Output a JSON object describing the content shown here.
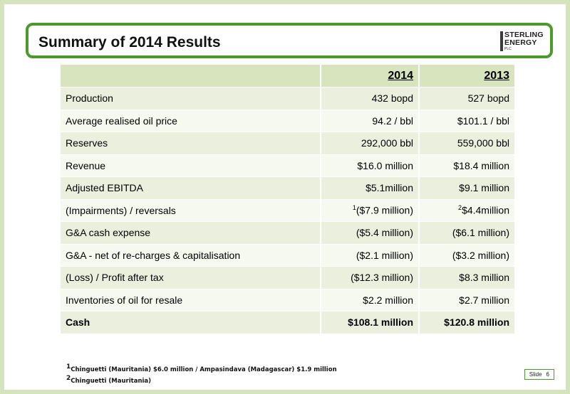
{
  "title": "Summary of 2014 Results",
  "logo": {
    "line1": "STERLING",
    "line2": "ENERGY",
    "line3": "PLC"
  },
  "table": {
    "header_2014": "2014",
    "header_2013": "2013",
    "rows": [
      {
        "label": "Production",
        "y2014": "432 bopd",
        "y2013": "527 bopd"
      },
      {
        "label": "Average realised oil price",
        "y2014": "94.2 / bbl",
        "y2013": "$101.1 / bbl"
      },
      {
        "label": "Reserves",
        "y2014": "292,000 bbl",
        "y2013": "559,000 bbl"
      },
      {
        "label": "Revenue",
        "y2014": "$16.0 million",
        "y2013": "$18.4 million"
      },
      {
        "label": "Adjusted EBITDA",
        "y2014": "$5.1million",
        "y2013": "$9.1 million"
      },
      {
        "label": "(Impairments) / reversals",
        "sup2014": "1",
        "y2014": "($7.9 million)",
        "sup2013": "2",
        "y2013": "$4.4million"
      },
      {
        "label": "G&A cash expense",
        "y2014": "($5.4 million)",
        "y2013": "($6.1 million)"
      },
      {
        "label": "G&A  - net of re-charges & capitalisation",
        "y2014": "($2.1 million)",
        "y2013": "($3.2 million)"
      },
      {
        "label": "(Loss) / Profit after tax",
        "y2014": "($12.3 million)",
        "y2013": "$8.3 million"
      },
      {
        "label": "Inventories of oil for resale",
        "y2014": "$2.2 million",
        "y2013": "$2.7 million"
      },
      {
        "label": "Cash",
        "y2014": "$108.1 million",
        "y2013": "$120.8 million"
      }
    ]
  },
  "footnotes": {
    "note1_marker": "1",
    "note1": "Chinguetti (Mauritania) $6.0 million / Ampasindava (Madagascar) $1.9 million",
    "note2_marker": "2",
    "note2": "Chinguetti (Mauritania)"
  },
  "slide": {
    "label": "Slide",
    "number": "6"
  }
}
